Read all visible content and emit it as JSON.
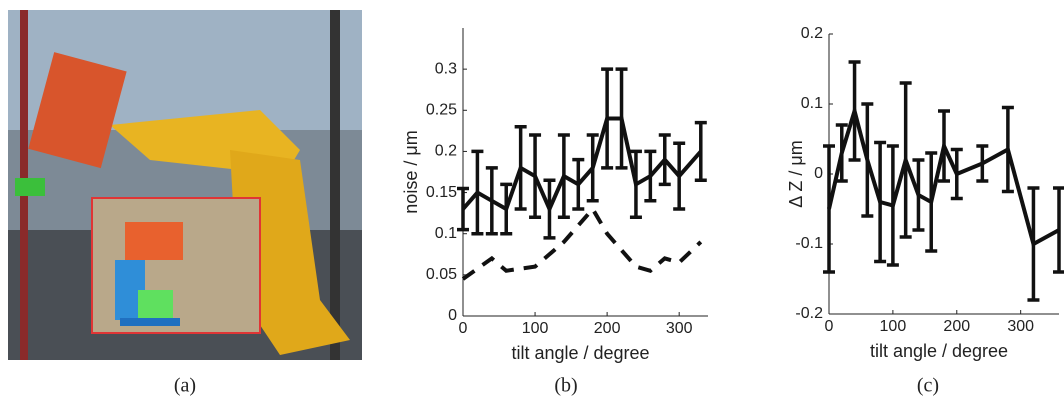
{
  "panel_labels": [
    "(a)",
    "(b)",
    "(c)"
  ],
  "chart_data": [
    {
      "type": "errorbar-line",
      "ylabel": "noise / μm",
      "xlabel": "tilt angle / degree",
      "xlim": [
        0,
        340
      ],
      "xticks": [
        0,
        100,
        200,
        300
      ],
      "ylim": [
        0,
        0.35
      ],
      "yticks": [
        0,
        0.05,
        0.1,
        0.15,
        0.2,
        0.25,
        0.3
      ],
      "series": [
        {
          "color": "#111111",
          "dashed": false,
          "x": [
            0,
            20,
            40,
            60,
            80,
            100,
            120,
            140,
            160,
            180,
            200,
            220,
            240,
            260,
            280,
            300,
            330
          ],
          "values": [
            0.13,
            0.15,
            0.14,
            0.13,
            0.18,
            0.17,
            0.13,
            0.17,
            0.16,
            0.18,
            0.24,
            0.24,
            0.16,
            0.17,
            0.19,
            0.17,
            0.2
          ],
          "errors": [
            0.025,
            0.05,
            0.04,
            0.03,
            0.05,
            0.05,
            0.035,
            0.05,
            0.03,
            0.04,
            0.06,
            0.06,
            0.04,
            0.03,
            0.03,
            0.04,
            0.035
          ]
        },
        {
          "color": "#111111",
          "dashed": true,
          "x": [
            0,
            40,
            60,
            100,
            120,
            140,
            180,
            200,
            220,
            240,
            260,
            280,
            300,
            330
          ],
          "values": [
            0.045,
            0.07,
            0.055,
            0.06,
            0.075,
            0.09,
            0.13,
            0.1,
            0.08,
            0.06,
            0.055,
            0.07,
            0.065,
            0.09
          ]
        }
      ]
    },
    {
      "type": "errorbar-line",
      "ylabel": "Δ Z / μm",
      "xlabel": "tilt angle / degree",
      "xlim": [
        0,
        360
      ],
      "xticks": [
        0,
        100,
        200,
        300
      ],
      "ylim": [
        -0.2,
        0.2
      ],
      "yticks": [
        -0.2,
        -0.1,
        0,
        0.1,
        0.2
      ],
      "series": [
        {
          "color": "#111111",
          "dashed": false,
          "x": [
            0,
            20,
            40,
            60,
            80,
            100,
            120,
            140,
            160,
            180,
            200,
            240,
            280,
            320,
            360
          ],
          "values": [
            -0.05,
            0.03,
            0.09,
            0.02,
            -0.04,
            -0.045,
            0.02,
            -0.03,
            -0.04,
            0.04,
            0,
            0.015,
            0.035,
            -0.1,
            -0.08
          ],
          "errors": [
            0.09,
            0.04,
            0.07,
            0.08,
            0.085,
            0.085,
            0.11,
            0.05,
            0.07,
            0.05,
            0.035,
            0.025,
            0.06,
            0.08,
            0.06
          ]
        }
      ]
    }
  ]
}
